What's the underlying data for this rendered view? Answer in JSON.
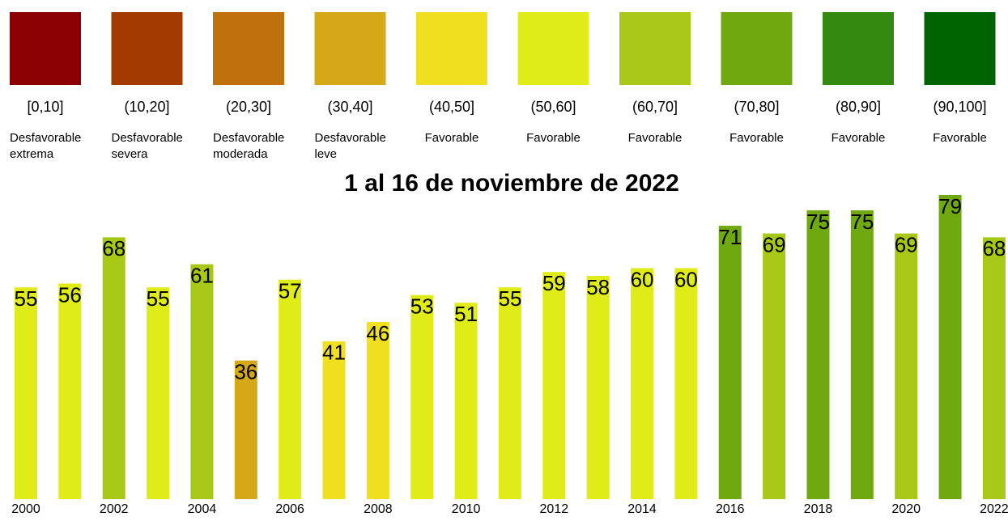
{
  "legend": [
    {
      "range": "[0,10]",
      "label": [
        "Desfavorable",
        "extrema"
      ],
      "color": "#8b0000"
    },
    {
      "range": "(10,20]",
      "label": [
        "Desfavorable",
        "severa"
      ],
      "color": "#a33a00"
    },
    {
      "range": "(20,30]",
      "label": [
        "Desfavorable",
        "moderada"
      ],
      "color": "#c0700c"
    },
    {
      "range": "(30,40]",
      "label": [
        "Desfavorable",
        "leve"
      ],
      "color": "#d4a817"
    },
    {
      "range": "(40,50]",
      "label": [
        "Favorable"
      ],
      "color": "#f0e020"
    },
    {
      "range": "(50,60]",
      "label": [
        "Favorable"
      ],
      "color": "#e0ec18"
    },
    {
      "range": "(60,70]",
      "label": [
        "Favorable"
      ],
      "color": "#a8c818"
    },
    {
      "range": "(70,80]",
      "label": [
        "Favorable"
      ],
      "color": "#70a810"
    },
    {
      "range": "(80,90]",
      "label": [
        "Favorable"
      ],
      "color": "#348a10"
    },
    {
      "range": "(90,100]",
      "label": [
        "Favorable"
      ],
      "color": "#006400"
    }
  ],
  "chart_data": {
    "type": "bar",
    "title": "1 al 16 de noviembre de 2022",
    "categories": [
      "2000",
      null,
      "2002",
      null,
      "2004",
      null,
      "2006",
      null,
      "2008",
      null,
      "2010",
      null,
      "2012",
      null,
      "2014",
      null,
      "2016",
      null,
      "2018",
      null,
      "2020",
      null,
      "2022"
    ],
    "values": [
      55,
      56,
      68,
      55,
      61,
      36,
      57,
      41,
      46,
      53,
      51,
      55,
      59,
      58,
      60,
      60,
      71,
      69,
      75,
      75,
      69,
      79,
      68
    ],
    "colors": [
      "#e0ec18",
      "#e0ec18",
      "#a8c818",
      "#e0ec18",
      "#a8c818",
      "#d4a817",
      "#e0ec18",
      "#f0e020",
      "#f0e020",
      "#e0ec18",
      "#e0ec18",
      "#e0ec18",
      "#e0ec18",
      "#e0ec18",
      "#e0ec18",
      "#e0ec18",
      "#70a810",
      "#a8c818",
      "#70a810",
      "#70a810",
      "#a8c818",
      "#70a810",
      "#a8c818"
    ]
  }
}
